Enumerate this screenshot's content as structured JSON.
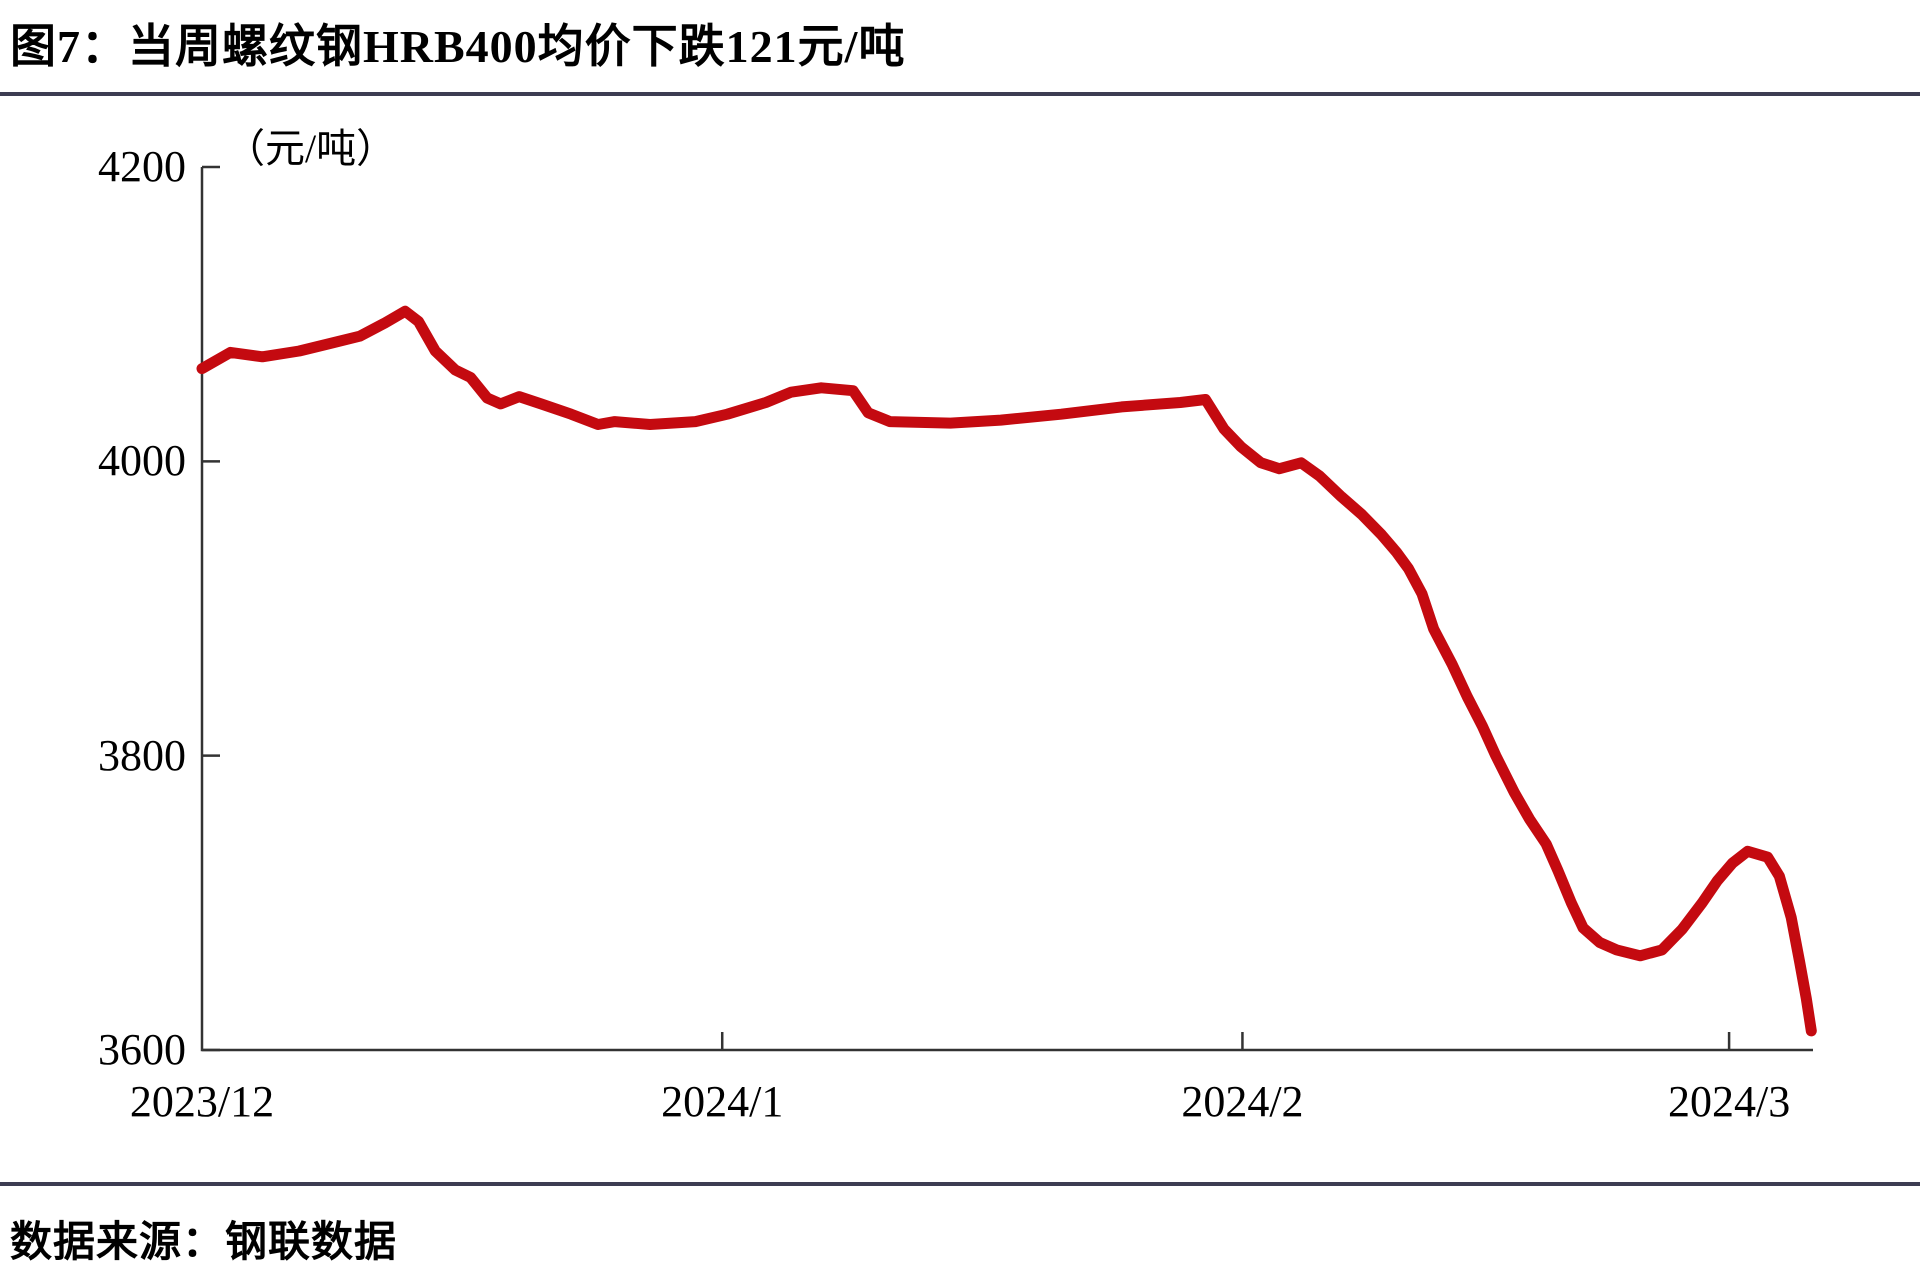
{
  "header": {
    "title": "图7：当周螺纹钢HRB400均价下跌121元/吨"
  },
  "footer": {
    "source": "数据来源：钢联数据"
  },
  "chart_data": {
    "type": "line",
    "title": "图7：当周螺纹钢HRB400均价下跌121元/吨",
    "unit_label": "（元/吨）",
    "xlabel": "",
    "ylabel": "（元/吨）",
    "ylim": [
      3600,
      4200
    ],
    "y_ticks": [
      4200,
      4000,
      3800,
      3600
    ],
    "x_ticks": [
      {
        "day": 0,
        "label": "2023/12"
      },
      {
        "day": 31,
        "label": "2024/1"
      },
      {
        "day": 62,
        "label": "2024/2"
      },
      {
        "day": 91,
        "label": "2024/3"
      }
    ],
    "x_range_days": [
      0,
      96
    ],
    "x_start_date": "2023/12/1",
    "grid": false,
    "legend_position": "none",
    "line_color": "#c40a10",
    "axis_color": "#333333",
    "series": [
      {
        "name": "螺纹钢HRB400均价",
        "points": [
          [
            0,
            4063
          ],
          [
            1.7,
            4074
          ],
          [
            3.6,
            4071
          ],
          [
            5.8,
            4075
          ],
          [
            7.6,
            4080
          ],
          [
            9.4,
            4085
          ],
          [
            10.9,
            4094
          ],
          [
            12.1,
            4102
          ],
          [
            12.9,
            4095
          ],
          [
            13.9,
            4075
          ],
          [
            15.1,
            4062
          ],
          [
            16.0,
            4057
          ],
          [
            17.0,
            4043
          ],
          [
            17.8,
            4039
          ],
          [
            18.9,
            4044
          ],
          [
            20.2,
            4039
          ],
          [
            22.0,
            4032
          ],
          [
            23.6,
            4025
          ],
          [
            24.6,
            4027
          ],
          [
            26.7,
            4025
          ],
          [
            29.4,
            4027
          ],
          [
            31.3,
            4032
          ],
          [
            33.6,
            4040
          ],
          [
            35.1,
            4047
          ],
          [
            36.9,
            4050
          ],
          [
            38.8,
            4048
          ],
          [
            39.7,
            4033
          ],
          [
            41.0,
            4027
          ],
          [
            44.6,
            4026
          ],
          [
            47.6,
            4028
          ],
          [
            51.2,
            4032
          ],
          [
            54.8,
            4037
          ],
          [
            58.3,
            4040
          ],
          [
            59.8,
            4042
          ],
          [
            60.9,
            4022
          ],
          [
            61.9,
            4010
          ],
          [
            63.1,
            3999
          ],
          [
            64.2,
            3995
          ],
          [
            65.5,
            3999
          ],
          [
            66.6,
            3990
          ],
          [
            67.9,
            3976
          ],
          [
            69.1,
            3964
          ],
          [
            70.3,
            3950
          ],
          [
            71.2,
            3938
          ],
          [
            71.9,
            3927
          ],
          [
            72.7,
            3910
          ],
          [
            73.4,
            3886
          ],
          [
            74.5,
            3862
          ],
          [
            75.4,
            3840
          ],
          [
            76.3,
            3820
          ],
          [
            77.1,
            3800
          ],
          [
            78.2,
            3775
          ],
          [
            79.1,
            3757
          ],
          [
            80.1,
            3740
          ],
          [
            80.8,
            3722
          ],
          [
            81.6,
            3700
          ],
          [
            82.3,
            3683
          ],
          [
            83.3,
            3673
          ],
          [
            84.3,
            3668
          ],
          [
            85.7,
            3664
          ],
          [
            87.0,
            3668
          ],
          [
            88.2,
            3682
          ],
          [
            89.4,
            3700
          ],
          [
            90.3,
            3715
          ],
          [
            91.2,
            3727
          ],
          [
            92.1,
            3735
          ],
          [
            93.3,
            3731
          ],
          [
            94.0,
            3718
          ],
          [
            94.7,
            3690
          ],
          [
            95.2,
            3660
          ],
          [
            95.6,
            3635
          ],
          [
            95.9,
            3613
          ]
        ]
      }
    ]
  },
  "colors": {
    "rule": "#3d3d52",
    "background": "#ffffff",
    "text": "#000000"
  }
}
